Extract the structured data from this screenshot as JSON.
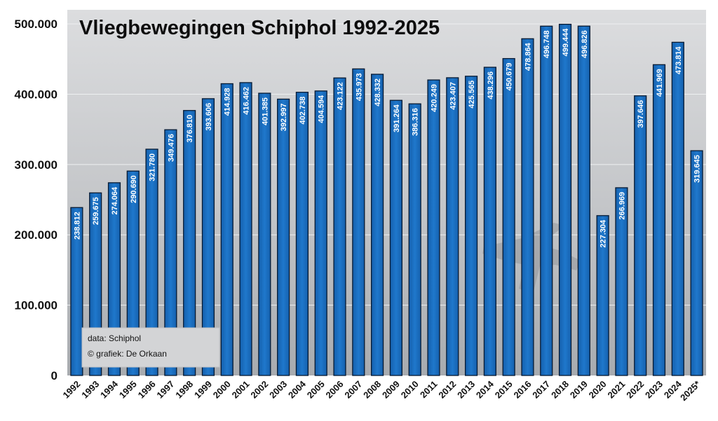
{
  "chart_data": {
    "type": "bar",
    "title": "Vliegbewegingen Schiphol 1992-2025",
    "xlabel": "",
    "ylabel": "",
    "ylim": [
      0,
      520000
    ],
    "yticks": [
      0,
      100000,
      200000,
      300000,
      400000,
      500000
    ],
    "ytick_labels": [
      "0",
      "100.000",
      "200.000",
      "300.000",
      "400.000",
      "500.000"
    ],
    "categories": [
      "1992",
      "1993",
      "1994",
      "1995",
      "1996",
      "1997",
      "1998",
      "1999",
      "2000",
      "2001",
      "2002",
      "2003",
      "2004",
      "2005",
      "2006",
      "2007",
      "2008",
      "2009",
      "2010",
      "2011",
      "2012",
      "2013",
      "2014",
      "2015",
      "2016",
      "2017",
      "2018",
      "2019",
      "2020",
      "2021",
      "2022",
      "2023",
      "2024",
      "2025*"
    ],
    "values": [
      238812,
      259675,
      274064,
      290690,
      321780,
      349476,
      376810,
      393606,
      414928,
      416462,
      401385,
      392997,
      402738,
      404594,
      423122,
      435973,
      428332,
      391264,
      386316,
      420249,
      423407,
      425565,
      438296,
      450679,
      478864,
      496748,
      499444,
      496826,
      227304,
      266969,
      397646,
      441969,
      473814,
      319645
    ],
    "value_labels": [
      "238.812",
      "259.675",
      "274.064",
      "290.690",
      "321.780",
      "349.476",
      "376.810",
      "393.606",
      "414.928",
      "416.462",
      "401.385",
      "392.997",
      "402.738",
      "404.594",
      "423.122",
      "435.973",
      "428.332",
      "391.264",
      "386.316",
      "420.249",
      "423.407",
      "425.565",
      "438.296",
      "450.679",
      "478.864",
      "496.748",
      "499.444",
      "496.826",
      "227.304",
      "266.969",
      "397.646",
      "441.969",
      "473.814",
      "319.645"
    ],
    "grid": true,
    "legend": "none",
    "colors": {
      "bar": "#1a6fc0",
      "bar_edge": "#061a33",
      "background_top": "#d9dadc",
      "background_bottom": "#a9acb0"
    }
  },
  "credits": {
    "line1": "data: Schiphol",
    "line2": "© grafiek: De Orkaan"
  }
}
